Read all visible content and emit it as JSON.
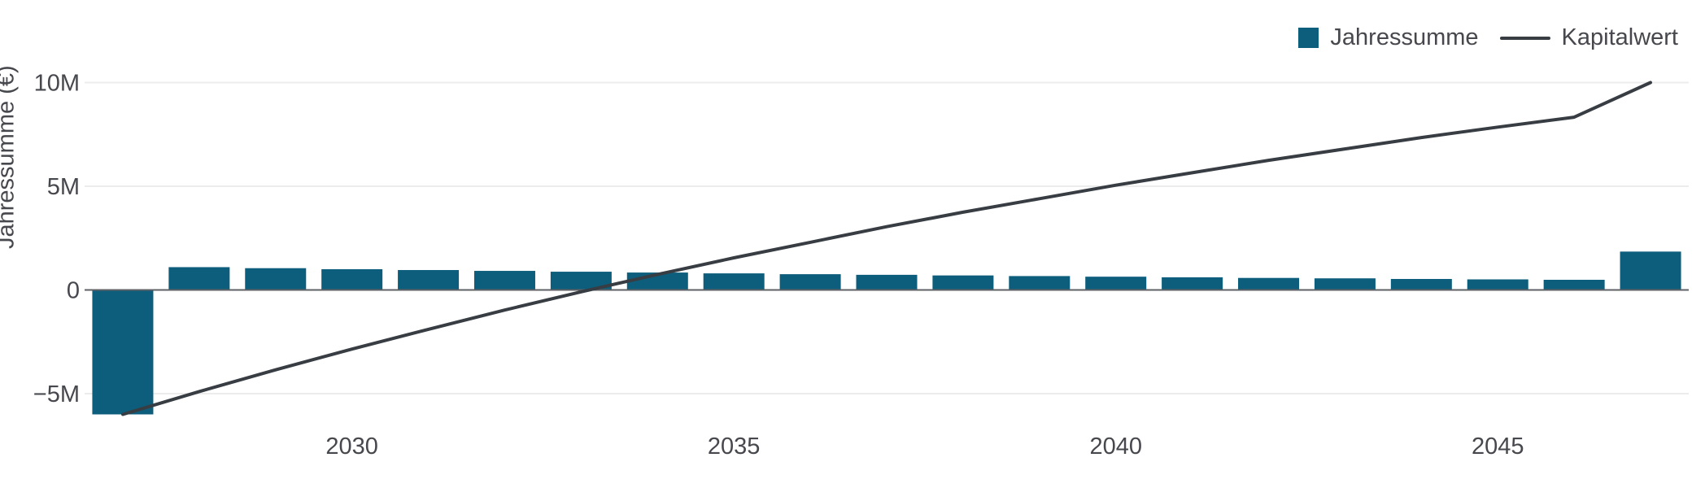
{
  "legend": {
    "items": [
      {
        "label": "Jahressumme",
        "swatch": "square"
      },
      {
        "label": "Kapitalwert",
        "swatch": "line"
      }
    ]
  },
  "axes": {
    "y_title": "Jahressumme (€)"
  },
  "colors": {
    "bar": "#0d5e7c",
    "line": "#373d43",
    "grid": "#ececec",
    "zero_line": "#5f6065",
    "text": "#47484d",
    "background": "#ffffff"
  },
  "chart_data": {
    "type": "bar",
    "title": "",
    "ylabel": "Jahressumme (€)",
    "xlabel": "",
    "grid": "horizontal",
    "legend_position": "top-right",
    "ylim": [
      -7,
      11.5
    ],
    "x": [
      2027,
      2028,
      2029,
      2030,
      2031,
      2032,
      2033,
      2034,
      2035,
      2036,
      2037,
      2038,
      2039,
      2040,
      2041,
      2042,
      2043,
      2044,
      2045,
      2046,
      2047
    ],
    "series": [
      {
        "name": "Jahressumme",
        "type": "bar",
        "unit": "M€",
        "values": [
          -6.0,
          1.1,
          1.05,
          1.0,
          0.96,
          0.92,
          0.88,
          0.84,
          0.8,
          0.76,
          0.73,
          0.7,
          0.67,
          0.64,
          0.61,
          0.58,
          0.56,
          0.53,
          0.51,
          0.49,
          1.85
        ]
      },
      {
        "name": "Kapitalwert",
        "type": "line",
        "unit": "M€",
        "values": [
          -6.0,
          -4.9,
          -3.85,
          -2.85,
          -1.9,
          -0.97,
          -0.09,
          0.75,
          1.55,
          2.3,
          3.05,
          3.75,
          4.4,
          5.05,
          5.65,
          6.25,
          6.8,
          7.35,
          7.85,
          8.33,
          10.0
        ]
      }
    ],
    "yticks": [
      {
        "value": 10,
        "label": "10M"
      },
      {
        "value": 5,
        "label": "5M"
      },
      {
        "value": 0,
        "label": "0"
      },
      {
        "value": -5,
        "label": "−5M"
      }
    ],
    "xticks": [
      {
        "value": 2030,
        "label": "2030"
      },
      {
        "value": 2035,
        "label": "2035"
      },
      {
        "value": 2040,
        "label": "2040"
      },
      {
        "value": 2045,
        "label": "2045"
      }
    ]
  }
}
